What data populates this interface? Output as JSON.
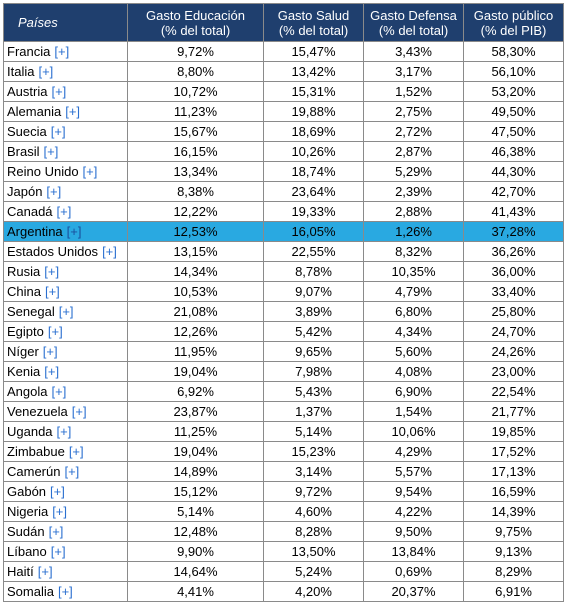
{
  "headers": [
    {
      "line1": "Países",
      "line2": ""
    },
    {
      "line1": "Gasto Educación",
      "line2": "(% del total)"
    },
    {
      "line1": "Gasto Salud",
      "line2": "(% del total)"
    },
    {
      "line1": "Gasto Defensa",
      "line2": "(% del total)"
    },
    {
      "line1": "Gasto público",
      "line2": "(% del PIB)"
    }
  ],
  "expand_label": "[+]",
  "highlight_color": "#29a9e1",
  "header_color": "#1f3f6e",
  "rows": [
    {
      "country": "Francia",
      "educ": "9,72%",
      "salud": "15,47%",
      "defensa": "3,43%",
      "publico": "58,30%"
    },
    {
      "country": "Italia",
      "educ": "8,80%",
      "salud": "13,42%",
      "defensa": "3,17%",
      "publico": "56,10%"
    },
    {
      "country": "Austria",
      "educ": "10,72%",
      "salud": "15,31%",
      "defensa": "1,52%",
      "publico": "53,20%"
    },
    {
      "country": "Alemania",
      "educ": "11,23%",
      "salud": "19,88%",
      "defensa": "2,75%",
      "publico": "49,50%"
    },
    {
      "country": "Suecia",
      "educ": "15,67%",
      "salud": "18,69%",
      "defensa": "2,72%",
      "publico": "47,50%"
    },
    {
      "country": "Brasil",
      "educ": "16,15%",
      "salud": "10,26%",
      "defensa": "2,87%",
      "publico": "46,38%"
    },
    {
      "country": "Reino Unido",
      "educ": "13,34%",
      "salud": "18,74%",
      "defensa": "5,29%",
      "publico": "44,30%"
    },
    {
      "country": "Japón",
      "educ": "8,38%",
      "salud": "23,64%",
      "defensa": "2,39%",
      "publico": "42,70%"
    },
    {
      "country": "Canadá",
      "educ": "12,22%",
      "salud": "19,33%",
      "defensa": "2,88%",
      "publico": "41,43%"
    },
    {
      "country": "Argentina",
      "educ": "12,53%",
      "salud": "16,05%",
      "defensa": "1,26%",
      "publico": "37,28%",
      "highlight": true
    },
    {
      "country": "Estados Unidos",
      "educ": "13,15%",
      "salud": "22,55%",
      "defensa": "8,32%",
      "publico": "36,26%"
    },
    {
      "country": "Rusia",
      "educ": "14,34%",
      "salud": "8,78%",
      "defensa": "10,35%",
      "publico": "36,00%"
    },
    {
      "country": "China",
      "educ": "10,53%",
      "salud": "9,07%",
      "defensa": "4,79%",
      "publico": "33,40%"
    },
    {
      "country": "Senegal",
      "educ": "21,08%",
      "salud": "3,89%",
      "defensa": "6,80%",
      "publico": "25,80%"
    },
    {
      "country": "Egipto",
      "educ": "12,26%",
      "salud": "5,42%",
      "defensa": "4,34%",
      "publico": "24,70%"
    },
    {
      "country": "Níger",
      "educ": "11,95%",
      "salud": "9,65%",
      "defensa": "5,60%",
      "publico": "24,26%"
    },
    {
      "country": "Kenia",
      "educ": "19,04%",
      "salud": "7,98%",
      "defensa": "4,08%",
      "publico": "23,00%"
    },
    {
      "country": "Angola",
      "educ": "6,92%",
      "salud": "5,43%",
      "defensa": "6,90%",
      "publico": "22,54%"
    },
    {
      "country": "Venezuela",
      "educ": "23,87%",
      "salud": "1,37%",
      "defensa": "1,54%",
      "publico": "21,77%"
    },
    {
      "country": "Uganda",
      "educ": "11,25%",
      "salud": "5,14%",
      "defensa": "10,06%",
      "publico": "19,85%"
    },
    {
      "country": "Zimbabue",
      "educ": "19,04%",
      "salud": "15,23%",
      "defensa": "4,29%",
      "publico": "17,52%"
    },
    {
      "country": "Camerún",
      "educ": "14,89%",
      "salud": "3,14%",
      "defensa": "5,57%",
      "publico": "17,13%"
    },
    {
      "country": "Gabón",
      "educ": "15,12%",
      "salud": "9,72%",
      "defensa": "9,54%",
      "publico": "16,59%"
    },
    {
      "country": "Nigeria",
      "educ": "5,14%",
      "salud": "4,60%",
      "defensa": "4,22%",
      "publico": "14,39%"
    },
    {
      "country": "Sudán",
      "educ": "12,48%",
      "salud": "8,28%",
      "defensa": "9,50%",
      "publico": "9,75%"
    },
    {
      "country": "Líbano",
      "educ": "9,90%",
      "salud": "13,50%",
      "defensa": "13,84%",
      "publico": "9,13%"
    },
    {
      "country": "Haití",
      "educ": "14,64%",
      "salud": "5,24%",
      "defensa": "0,69%",
      "publico": "8,29%"
    },
    {
      "country": "Somalia",
      "educ": "4,41%",
      "salud": "4,20%",
      "defensa": "20,37%",
      "publico": "6,91%"
    }
  ]
}
